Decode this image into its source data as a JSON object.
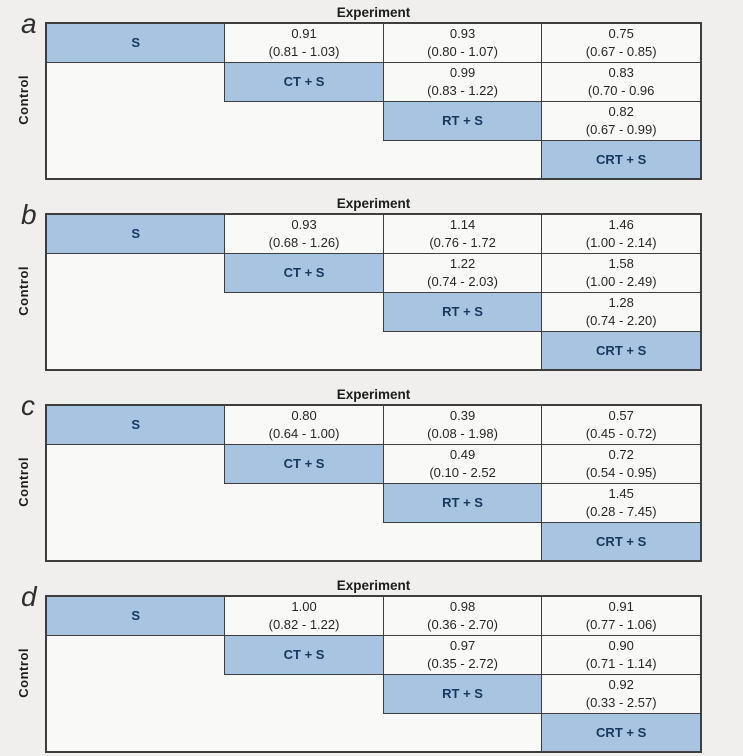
{
  "labels": {
    "experiment": "Experiment",
    "control": "Control"
  },
  "treatments": [
    "S",
    "CT + S",
    "RT + S",
    "CRT + S"
  ],
  "colors": {
    "diagonal_fill": "#a8c4e0",
    "diagonal_text": "#16375e",
    "grid_line": "#3e3e3e",
    "value_text": "#262626",
    "page_background": "#f0efed",
    "cell_background": "#f9f9f7"
  },
  "panels": [
    {
      "letter": "a",
      "cells": {
        "r1c2": {
          "est": "0.91",
          "ci": "(0.81 - 1.03)"
        },
        "r1c3": {
          "est": "0.93",
          "ci": "(0.80 - 1.07)"
        },
        "r1c4": {
          "est": "0.75",
          "ci": "(0.67 - 0.85)"
        },
        "r2c3": {
          "est": "0.99",
          "ci": "(0.83 - 1.22)"
        },
        "r2c4": {
          "est": "0.83",
          "ci": "(0.70 - 0.96"
        },
        "r3c4": {
          "est": "0.82",
          "ci": "(0.67 - 0.99)"
        }
      }
    },
    {
      "letter": "b",
      "cells": {
        "r1c2": {
          "est": "0.93",
          "ci": "(0.68 - 1.26)"
        },
        "r1c3": {
          "est": "1.14",
          "ci": "(0.76 - 1.72"
        },
        "r1c4": {
          "est": "1.46",
          "ci": "(1.00 - 2.14)"
        },
        "r2c3": {
          "est": "1.22",
          "ci": "(0.74 - 2.03)"
        },
        "r2c4": {
          "est": "1.58",
          "ci": "(1.00 - 2.49)"
        },
        "r3c4": {
          "est": "1.28",
          "ci": "(0.74 - 2.20)"
        }
      }
    },
    {
      "letter": "c",
      "cells": {
        "r1c2": {
          "est": "0.80",
          "ci": "(0.64 - 1.00)"
        },
        "r1c3": {
          "est": "0.39",
          "ci": "(0.08 - 1.98)"
        },
        "r1c4": {
          "est": "0.57",
          "ci": "(0.45 - 0.72)"
        },
        "r2c3": {
          "est": "0.49",
          "ci": "(0.10 - 2.52"
        },
        "r2c4": {
          "est": "0.72",
          "ci": "(0.54 - 0.95)"
        },
        "r3c4": {
          "est": "1.45",
          "ci": "(0.28 - 7.45)"
        }
      }
    },
    {
      "letter": "d",
      "cells": {
        "r1c2": {
          "est": "1.00",
          "ci": "(0.82 - 1.22)"
        },
        "r1c3": {
          "est": "0.98",
          "ci": "(0.36 - 2.70)"
        },
        "r1c4": {
          "est": "0.91",
          "ci": "(0.77 - 1.06)"
        },
        "r2c3": {
          "est": "0.97",
          "ci": "(0.35 - 2.72)"
        },
        "r2c4": {
          "est": "0.90",
          "ci": "(0.71 - 1.14)"
        },
        "r3c4": {
          "est": "0.92",
          "ci": "(0.33 - 2.57)"
        }
      }
    }
  ]
}
